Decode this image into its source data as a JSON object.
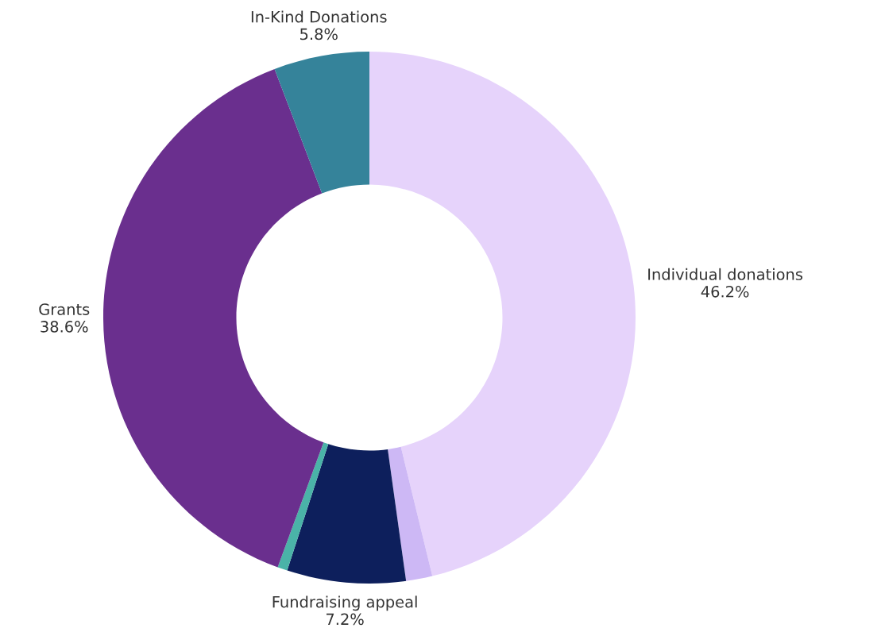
{
  "chart_data": {
    "type": "donut",
    "categories": [
      "Individual donations",
      null,
      "Fundraising appeal",
      null,
      "Grants",
      "In-Kind Donations"
    ],
    "values": [
      46.2,
      1.6,
      7.2,
      0.6,
      38.6,
      5.8
    ],
    "value_labels": [
      "46.2%",
      null,
      "7.2%",
      null,
      "38.6%",
      "5.8%"
    ],
    "colors": [
      "#e6d3fb",
      "#cdb8f5",
      "#0d1f5c",
      "#4ab3a8",
      "#6a2f8e",
      "#35839a"
    ],
    "legend": false
  }
}
